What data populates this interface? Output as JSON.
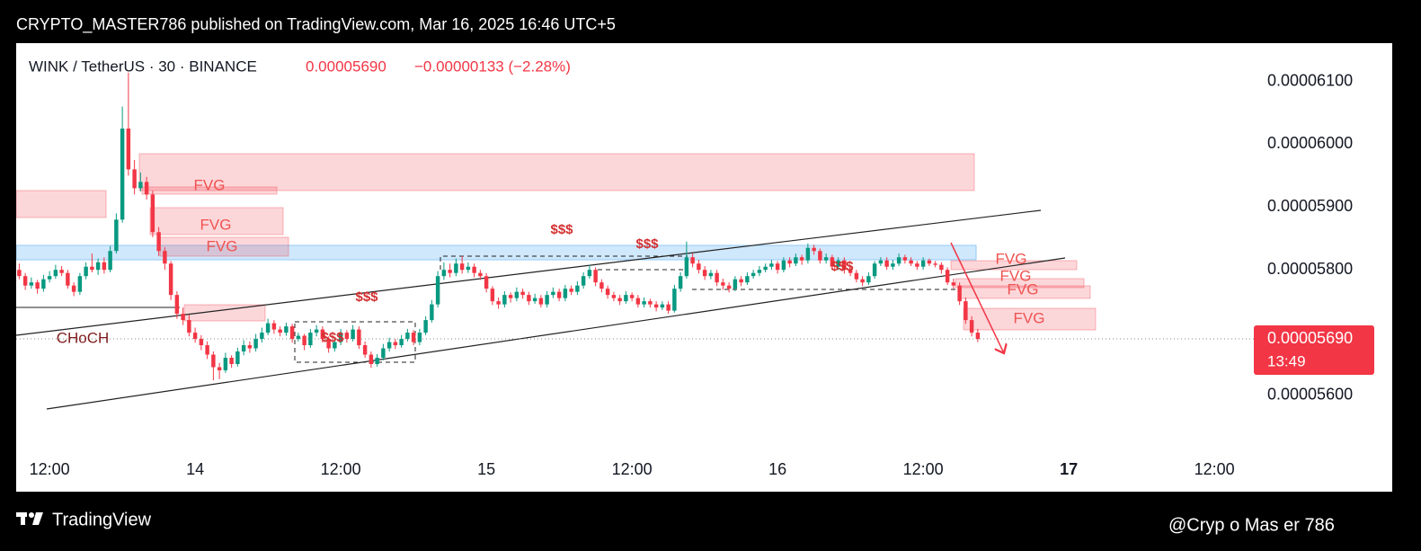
{
  "header": {
    "publisher": "CRYPTO_MASTER786 published on TradingView.com, Mar 16, 2025 16:46 UTC+5"
  },
  "footer": {
    "brand": "TradingView",
    "watermark": "@Cryp o Mas er 786"
  },
  "chart_data": {
    "type": "candlestick",
    "title": "WINK / TetherUS · 30 · BINANCE",
    "last": "0.00005690",
    "change": "−0.00000133 (−2.28%)",
    "price_tag": "0.00005690",
    "countdown": "13:49",
    "up_color": "#089981",
    "down_color": "#f23645",
    "ylim": [
      5.504e-05,
      6.161e-05
    ],
    "yticks": [
      {
        "value": 5.6e-05,
        "label": "0.00005600"
      },
      {
        "value": 5.8e-05,
        "label": "0.00005800"
      },
      {
        "value": 5.9e-05,
        "label": "0.00005900"
      },
      {
        "value": 6e-05,
        "label": "0.00006000"
      },
      {
        "value": 6.1e-05,
        "label": "0.00006100"
      }
    ],
    "xlim": [
      -0.5,
      203.5
    ],
    "xticks": [
      {
        "value": 5,
        "label": "12:00"
      },
      {
        "value": 29,
        "label": "14"
      },
      {
        "value": 53,
        "label": "12:00"
      },
      {
        "value": 77,
        "label": "15"
      },
      {
        "value": 101,
        "label": "12:00"
      },
      {
        "value": 125,
        "label": "16"
      },
      {
        "value": 149,
        "label": "12:00"
      },
      {
        "value": 173,
        "label": "17"
      },
      {
        "value": 197,
        "label": "12:00"
      }
    ],
    "annotations": [
      "FVG",
      "FVG",
      "FVG",
      "FVG",
      "FVG",
      "FVG",
      "FVG",
      "$$$",
      "$$$",
      "$$$",
      "$$$",
      "$$$",
      "CHoCH"
    ],
    "ohlc": [
      [
        5.8e-05,
        5.81e-05,
        5.785e-05,
        5.79e-05
      ],
      [
        5.79e-05,
        5.795e-05,
        5.768e-05,
        5.775e-05
      ],
      [
        5.775e-05,
        5.788e-05,
        5.77e-05,
        5.78e-05
      ],
      [
        5.78e-05,
        5.784e-05,
        5.762e-05,
        5.77e-05
      ],
      [
        5.77e-05,
        5.792e-05,
        5.765e-05,
        5.785e-05
      ],
      [
        5.785e-05,
        5.798e-05,
        5.78e-05,
        5.79e-05
      ],
      [
        5.79e-05,
        5.808e-05,
        5.786e-05,
        5.8e-05
      ],
      [
        5.8e-05,
        5.806e-05,
        5.79e-05,
        5.795e-05
      ],
      [
        5.795e-05,
        5.8e-05,
        5.77e-05,
        5.775e-05
      ],
      [
        5.775e-05,
        5.78e-05,
        5.758e-05,
        5.765e-05
      ],
      [
        5.765e-05,
        5.795e-05,
        5.76e-05,
        5.79e-05
      ],
      [
        5.79e-05,
        5.812e-05,
        5.785e-05,
        5.805e-05
      ],
      [
        5.805e-05,
        5.826e-05,
        5.796e-05,
        5.8e-05
      ],
      [
        5.8e-05,
        5.818e-05,
        5.792e-05,
        5.812e-05
      ],
      [
        5.812e-05,
        5.82e-05,
        5.794e-05,
        5.8e-05
      ],
      [
        5.8e-05,
        5.838e-05,
        5.796e-05,
        5.83e-05
      ],
      [
        5.83e-05,
        5.89e-05,
        5.826e-05,
        5.88e-05
      ],
      [
        5.88e-05,
        6.06e-05,
        5.875e-05,
        6.025e-05
      ],
      [
        6.025e-05,
        6.114e-05,
        5.95e-05,
        5.96e-05
      ],
      [
        5.96e-05,
        5.975e-05,
        5.92e-05,
        5.93e-05
      ],
      [
        5.93e-05,
        5.955e-05,
        5.925e-05,
        5.94e-05
      ],
      [
        5.94e-05,
        5.948e-05,
        5.912e-05,
        5.92e-05
      ],
      [
        5.92e-05,
        5.926e-05,
        5.852e-05,
        5.86e-05
      ],
      [
        5.86e-05,
        5.868e-05,
        5.822e-05,
        5.83e-05
      ],
      [
        5.83e-05,
        5.836e-05,
        5.8e-05,
        5.81e-05
      ],
      [
        5.81e-05,
        5.814e-05,
        5.752e-05,
        5.76e-05
      ],
      [
        5.76e-05,
        5.766e-05,
        5.722e-05,
        5.73e-05
      ],
      [
        5.73e-05,
        5.74e-05,
        5.712e-05,
        5.72e-05
      ],
      [
        5.72e-05,
        5.728e-05,
        5.694e-05,
        5.7e-05
      ],
      [
        5.7e-05,
        5.708e-05,
        5.684e-05,
        5.69e-05
      ],
      [
        5.69e-05,
        5.696e-05,
        5.672e-05,
        5.68e-05
      ],
      [
        5.68e-05,
        5.686e-05,
        5.658e-05,
        5.665e-05
      ],
      [
        5.665e-05,
        5.67e-05,
        5.624e-05,
        5.645e-05
      ],
      [
        5.645e-05,
        5.652e-05,
        5.626e-05,
        5.64e-05
      ],
      [
        5.64e-05,
        5.668e-05,
        5.636e-05,
        5.66e-05
      ],
      [
        5.66e-05,
        5.664e-05,
        5.644e-05,
        5.65e-05
      ],
      [
        5.65e-05,
        5.676e-05,
        5.646e-05,
        5.67e-05
      ],
      [
        5.67e-05,
        5.688e-05,
        5.664e-05,
        5.68e-05
      ],
      [
        5.68e-05,
        5.686e-05,
        5.668e-05,
        5.675e-05
      ],
      [
        5.675e-05,
        5.698e-05,
        5.67e-05,
        5.69e-05
      ],
      [
        5.69e-05,
        5.708e-05,
        5.684e-05,
        5.7e-05
      ],
      [
        5.7e-05,
        5.722e-05,
        5.696e-05,
        5.715e-05
      ],
      [
        5.715e-05,
        5.72e-05,
        5.698e-05,
        5.705e-05
      ],
      [
        5.705e-05,
        5.71e-05,
        5.694e-05,
        5.7e-05
      ],
      [
        5.7e-05,
        5.716e-05,
        5.695e-05,
        5.71e-05
      ],
      [
        5.71e-05,
        5.714e-05,
        5.684e-05,
        5.69e-05
      ],
      [
        5.69e-05,
        5.7e-05,
        5.686e-05,
        5.695e-05
      ],
      [
        5.695e-05,
        5.698e-05,
        5.672e-05,
        5.68e-05
      ],
      [
        5.68e-05,
        5.706e-05,
        5.676e-05,
        5.7e-05
      ],
      [
        5.7e-05,
        5.712e-05,
        5.694e-05,
        5.705e-05
      ],
      [
        5.705e-05,
        5.71e-05,
        5.684e-05,
        5.69e-05
      ],
      [
        5.69e-05,
        5.694e-05,
        5.668e-05,
        5.675e-05
      ],
      [
        5.675e-05,
        5.692e-05,
        5.67e-05,
        5.685e-05
      ],
      [
        5.685e-05,
        5.706e-05,
        5.68e-05,
        5.7e-05
      ],
      [
        5.7e-05,
        5.704e-05,
        5.684e-05,
        5.69e-05
      ],
      [
        5.69e-05,
        5.712e-05,
        5.686e-05,
        5.705e-05
      ],
      [
        5.705e-05,
        5.71e-05,
        5.674e-05,
        5.68e-05
      ],
      [
        5.68e-05,
        5.686e-05,
        5.66e-05,
        5.665e-05
      ],
      [
        5.665e-05,
        5.67e-05,
        5.644e-05,
        5.65e-05
      ],
      [
        5.65e-05,
        5.666e-05,
        5.646e-05,
        5.66e-05
      ],
      [
        5.66e-05,
        5.682e-05,
        5.656e-05,
        5.675e-05
      ],
      [
        5.675e-05,
        5.692e-05,
        5.67e-05,
        5.685e-05
      ],
      [
        5.685e-05,
        5.69e-05,
        5.674e-05,
        5.68e-05
      ],
      [
        5.68e-05,
        5.696e-05,
        5.676e-05,
        5.69e-05
      ],
      [
        5.69e-05,
        5.706e-05,
        5.686e-05,
        5.7e-05
      ],
      [
        5.7e-05,
        5.704e-05,
        5.68e-05,
        5.685e-05
      ],
      [
        5.685e-05,
        5.706e-05,
        5.68e-05,
        5.7e-05
      ],
      [
        5.7e-05,
        5.726e-05,
        5.696e-05,
        5.72e-05
      ],
      [
        5.72e-05,
        5.752e-05,
        5.716e-05,
        5.745e-05
      ],
      [
        5.745e-05,
        5.798e-05,
        5.74e-05,
        5.79e-05
      ],
      [
        5.79e-05,
        5.812e-05,
        5.784e-05,
        5.8e-05
      ],
      [
        5.8e-05,
        5.81e-05,
        5.788e-05,
        5.795e-05
      ],
      [
        5.795e-05,
        5.818e-05,
        5.79e-05,
        5.81e-05
      ],
      [
        5.81e-05,
        5.822e-05,
        5.794e-05,
        5.8e-05
      ],
      [
        5.8e-05,
        5.812e-05,
        5.795e-05,
        5.805e-05
      ],
      [
        5.805e-05,
        5.81e-05,
        5.788e-05,
        5.795e-05
      ],
      [
        5.795e-05,
        5.8e-05,
        5.784e-05,
        5.79e-05
      ],
      [
        5.79e-05,
        5.795e-05,
        5.764e-05,
        5.77e-05
      ],
      [
        5.77e-05,
        5.774e-05,
        5.744e-05,
        5.75e-05
      ],
      [
        5.75e-05,
        5.756e-05,
        5.738e-05,
        5.745e-05
      ],
      [
        5.745e-05,
        5.766e-05,
        5.74e-05,
        5.76e-05
      ],
      [
        5.76e-05,
        5.764e-05,
        5.748e-05,
        5.755e-05
      ],
      [
        5.755e-05,
        5.772e-05,
        5.75e-05,
        5.765e-05
      ],
      [
        5.765e-05,
        5.77e-05,
        5.754e-05,
        5.76e-05
      ],
      [
        5.76e-05,
        5.765e-05,
        5.744e-05,
        5.75e-05
      ],
      [
        5.75e-05,
        5.762e-05,
        5.746e-05,
        5.755e-05
      ],
      [
        5.755e-05,
        5.76e-05,
        5.74e-05,
        5.745e-05
      ],
      [
        5.745e-05,
        5.766e-05,
        5.74e-05,
        5.76e-05
      ],
      [
        5.76e-05,
        5.772e-05,
        5.755e-05,
        5.765e-05
      ],
      [
        5.765e-05,
        5.77e-05,
        5.75e-05,
        5.755e-05
      ],
      [
        5.755e-05,
        5.776e-05,
        5.75e-05,
        5.77e-05
      ],
      [
        5.77e-05,
        5.775e-05,
        5.76e-05,
        5.765e-05
      ],
      [
        5.765e-05,
        5.782e-05,
        5.76e-05,
        5.775e-05
      ],
      [
        5.775e-05,
        5.796e-05,
        5.77e-05,
        5.79e-05
      ],
      [
        5.79e-05,
        5.808e-05,
        5.786e-05,
        5.8e-05
      ],
      [
        5.8e-05,
        5.804e-05,
        5.774e-05,
        5.78e-05
      ],
      [
        5.78e-05,
        5.785e-05,
        5.764e-05,
        5.77e-05
      ],
      [
        5.77e-05,
        5.775e-05,
        5.754e-05,
        5.76e-05
      ],
      [
        5.76e-05,
        5.765e-05,
        5.75e-05,
        5.755e-05
      ],
      [
        5.755e-05,
        5.76e-05,
        5.744e-05,
        5.75e-05
      ],
      [
        5.75e-05,
        5.766e-05,
        5.746e-05,
        5.76e-05
      ],
      [
        5.76e-05,
        5.764e-05,
        5.75e-05,
        5.755e-05
      ],
      [
        5.755e-05,
        5.76e-05,
        5.74e-05,
        5.745e-05
      ],
      [
        5.745e-05,
        5.756e-05,
        5.74e-05,
        5.75e-05
      ],
      [
        5.75e-05,
        5.754e-05,
        5.74e-05,
        5.745e-05
      ],
      [
        5.745e-05,
        5.75e-05,
        5.734e-05,
        5.74e-05
      ],
      [
        5.74e-05,
        5.75e-05,
        5.736e-05,
        5.745e-05
      ],
      [
        5.745e-05,
        5.75e-05,
        5.73e-05,
        5.735e-05
      ],
      [
        5.735e-05,
        5.776e-05,
        5.732e-05,
        5.77e-05
      ],
      [
        5.77e-05,
        5.796e-05,
        5.765e-05,
        5.79e-05
      ],
      [
        5.79e-05,
        5.845e-05,
        5.786e-05,
        5.82e-05
      ],
      [
        5.82e-05,
        5.826e-05,
        5.804e-05,
        5.81e-05
      ],
      [
        5.81e-05,
        5.816e-05,
        5.794e-05,
        5.8e-05
      ],
      [
        5.8e-05,
        5.806e-05,
        5.784e-05,
        5.79e-05
      ],
      [
        5.79e-05,
        5.8e-05,
        5.785e-05,
        5.795e-05
      ],
      [
        5.795e-05,
        5.8e-05,
        5.774e-05,
        5.78e-05
      ],
      [
        5.78e-05,
        5.786e-05,
        5.768e-05,
        5.775e-05
      ],
      [
        5.775e-05,
        5.78e-05,
        5.764e-05,
        5.77e-05
      ],
      [
        5.77e-05,
        5.79e-05,
        5.766e-05,
        5.785e-05
      ],
      [
        5.785e-05,
        5.79e-05,
        5.774e-05,
        5.78e-05
      ],
      [
        5.78e-05,
        5.796e-05,
        5.776e-05,
        5.79e-05
      ],
      [
        5.79e-05,
        5.8e-05,
        5.786e-05,
        5.795e-05
      ],
      [
        5.795e-05,
        5.806e-05,
        5.79e-05,
        5.8e-05
      ],
      [
        5.8e-05,
        5.81e-05,
        5.796e-05,
        5.805e-05
      ],
      [
        5.805e-05,
        5.816e-05,
        5.8e-05,
        5.81e-05
      ],
      [
        5.81e-05,
        5.814e-05,
        5.794e-05,
        5.8e-05
      ],
      [
        5.8e-05,
        5.82e-05,
        5.796e-05,
        5.815e-05
      ],
      [
        5.815e-05,
        5.82e-05,
        5.804e-05,
        5.81e-05
      ],
      [
        5.81e-05,
        5.826e-05,
        5.806e-05,
        5.82e-05
      ],
      [
        5.82e-05,
        5.824e-05,
        5.808e-05,
        5.815e-05
      ],
      [
        5.815e-05,
        5.842e-05,
        5.81e-05,
        5.835e-05
      ],
      [
        5.835e-05,
        5.84e-05,
        5.824e-05,
        5.83e-05
      ],
      [
        5.83e-05,
        5.834e-05,
        5.81e-05,
        5.815e-05
      ],
      [
        5.815e-05,
        5.826e-05,
        5.81e-05,
        5.82e-05
      ],
      [
        5.82e-05,
        5.824e-05,
        5.8e-05,
        5.805e-05
      ],
      [
        5.805e-05,
        5.82e-05,
        5.8e-05,
        5.815e-05
      ],
      [
        5.815e-05,
        5.82e-05,
        5.794e-05,
        5.8e-05
      ],
      [
        5.8e-05,
        5.806e-05,
        5.79e-05,
        5.795e-05
      ],
      [
        5.795e-05,
        5.8e-05,
        5.78e-05,
        5.785e-05
      ],
      [
        5.785e-05,
        5.79e-05,
        5.774e-05,
        5.78e-05
      ],
      [
        5.78e-05,
        5.796e-05,
        5.776e-05,
        5.79e-05
      ],
      [
        5.79e-05,
        5.814e-05,
        5.786e-05,
        5.81e-05
      ],
      [
        5.81e-05,
        5.82e-05,
        5.806e-05,
        5.815e-05
      ],
      [
        5.815e-05,
        5.82e-05,
        5.8e-05,
        5.805e-05
      ],
      [
        5.805e-05,
        5.816e-05,
        5.8e-05,
        5.81e-05
      ],
      [
        5.81e-05,
        5.826e-05,
        5.806e-05,
        5.82e-05
      ],
      [
        5.82e-05,
        5.824e-05,
        5.81e-05,
        5.815e-05
      ],
      [
        5.815e-05,
        5.82e-05,
        5.806e-05,
        5.81e-05
      ],
      [
        5.81e-05,
        5.814e-05,
        5.8e-05,
        5.805e-05
      ],
      [
        5.805e-05,
        5.82e-05,
        5.8e-05,
        5.815e-05
      ],
      [
        5.815e-05,
        5.818e-05,
        5.806e-05,
        5.81e-05
      ],
      [
        5.81e-05,
        5.814e-05,
        5.804e-05,
        5.808e-05
      ],
      [
        5.808e-05,
        5.812e-05,
        5.794e-05,
        5.8e-05
      ],
      [
        5.8e-05,
        5.804e-05,
        5.776e-05,
        5.78e-05
      ],
      [
        5.78e-05,
        5.786e-05,
        5.77e-05,
        5.775e-05
      ],
      [
        5.775e-05,
        5.78e-05,
        5.744e-05,
        5.75e-05
      ],
      [
        5.75e-05,
        5.756e-05,
        5.714e-05,
        5.72e-05
      ],
      [
        5.72e-05,
        5.726e-05,
        5.694e-05,
        5.7e-05
      ],
      [
        5.7e-05,
        5.706e-05,
        5.685e-05,
        5.69e-05
      ]
    ]
  }
}
